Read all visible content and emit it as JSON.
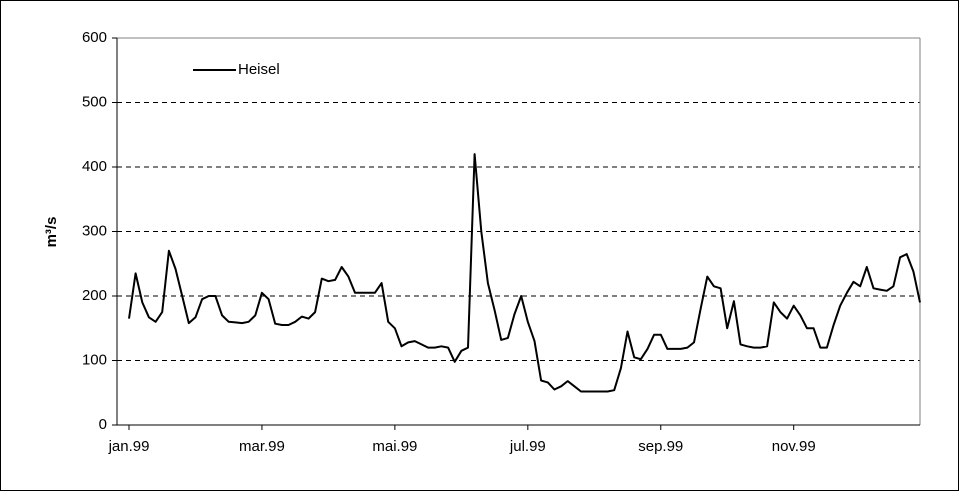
{
  "chart_data": {
    "type": "line",
    "y_label": "m³/s",
    "categories": [
      "jan.99",
      null,
      null,
      null,
      null,
      null,
      null,
      null,
      null,
      null,
      null,
      null,
      null,
      null,
      null,
      null,
      null,
      null,
      null,
      null,
      "mar.99",
      null,
      null,
      null,
      null,
      null,
      null,
      null,
      null,
      null,
      null,
      null,
      null,
      null,
      null,
      null,
      null,
      null,
      null,
      null,
      "mai.99",
      null,
      null,
      null,
      null,
      null,
      null,
      null,
      null,
      null,
      null,
      null,
      null,
      null,
      null,
      null,
      null,
      null,
      null,
      null,
      "jul.99",
      null,
      null,
      null,
      null,
      null,
      null,
      null,
      null,
      null,
      null,
      null,
      null,
      null,
      null,
      null,
      null,
      null,
      null,
      null,
      "sep.99",
      null,
      null,
      null,
      null,
      null,
      null,
      null,
      null,
      null,
      null,
      null,
      null,
      null,
      null,
      null,
      null,
      null,
      null,
      null,
      "nov.99",
      null,
      null,
      null,
      null,
      null,
      null,
      null,
      null,
      null,
      null,
      null,
      null,
      null,
      null,
      null,
      null,
      null,
      null,
      null
    ],
    "series": [
      {
        "name": "Heisel",
        "color": "#000000",
        "values": [
          165,
          235,
          190,
          167,
          160,
          175,
          270,
          242,
          200,
          158,
          167,
          195,
          200,
          200,
          170,
          160,
          159,
          158,
          160,
          170,
          205,
          195,
          157,
          155,
          155,
          160,
          168,
          165,
          175,
          227,
          223,
          225,
          245,
          230,
          205,
          205,
          205,
          205,
          220,
          160,
          150,
          122,
          128,
          130,
          125,
          120,
          120,
          122,
          120,
          98,
          115,
          120,
          420,
          300,
          220,
          178,
          132,
          135,
          172,
          200,
          160,
          130,
          69,
          66,
          55,
          60,
          68,
          60,
          52,
          52,
          52,
          52,
          52,
          54,
          88,
          145,
          105,
          102,
          118,
          140,
          140,
          118,
          118,
          118,
          120,
          128,
          180,
          230,
          215,
          212,
          150,
          192,
          125,
          122,
          120,
          120,
          122,
          190,
          175,
          165,
          185,
          170,
          150,
          150,
          120,
          120,
          155,
          185,
          205,
          222,
          215,
          245,
          212,
          210,
          208,
          215,
          260,
          265,
          238,
          190
        ]
      }
    ],
    "ylim": [
      0,
      600
    ],
    "yticks": [
      0,
      100,
      200,
      300,
      400,
      500,
      600
    ],
    "grid": true,
    "legend": "upper left"
  }
}
